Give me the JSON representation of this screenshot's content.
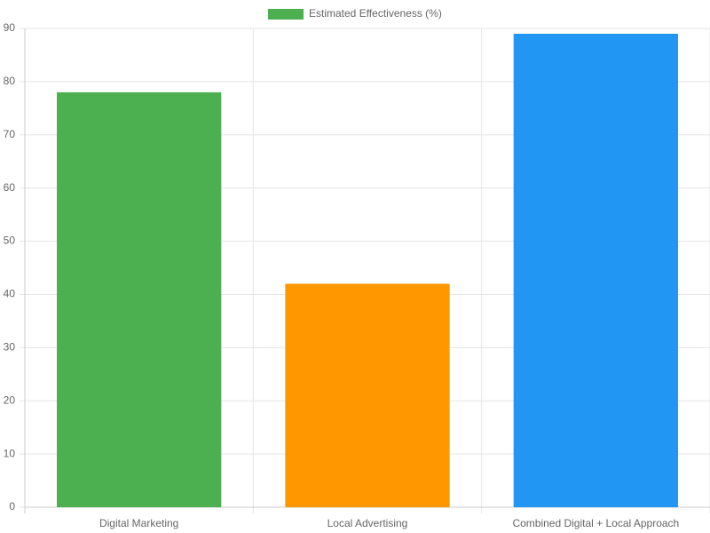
{
  "chart_data": {
    "type": "bar",
    "categories": [
      "Digital Marketing",
      "Local Advertising",
      "Combined Digital + Local Approach"
    ],
    "series": [
      {
        "name": "Estimated Effectiveness (%)",
        "colors": [
          "#4caf50",
          "#ff9800",
          "#2196f3"
        ],
        "values": [
          78,
          42,
          89
        ]
      }
    ],
    "ylim": [
      0,
      90
    ],
    "yticks": [
      0,
      10,
      20,
      30,
      40,
      50,
      60,
      70,
      80,
      90
    ],
    "grid": true,
    "legend": "top"
  }
}
